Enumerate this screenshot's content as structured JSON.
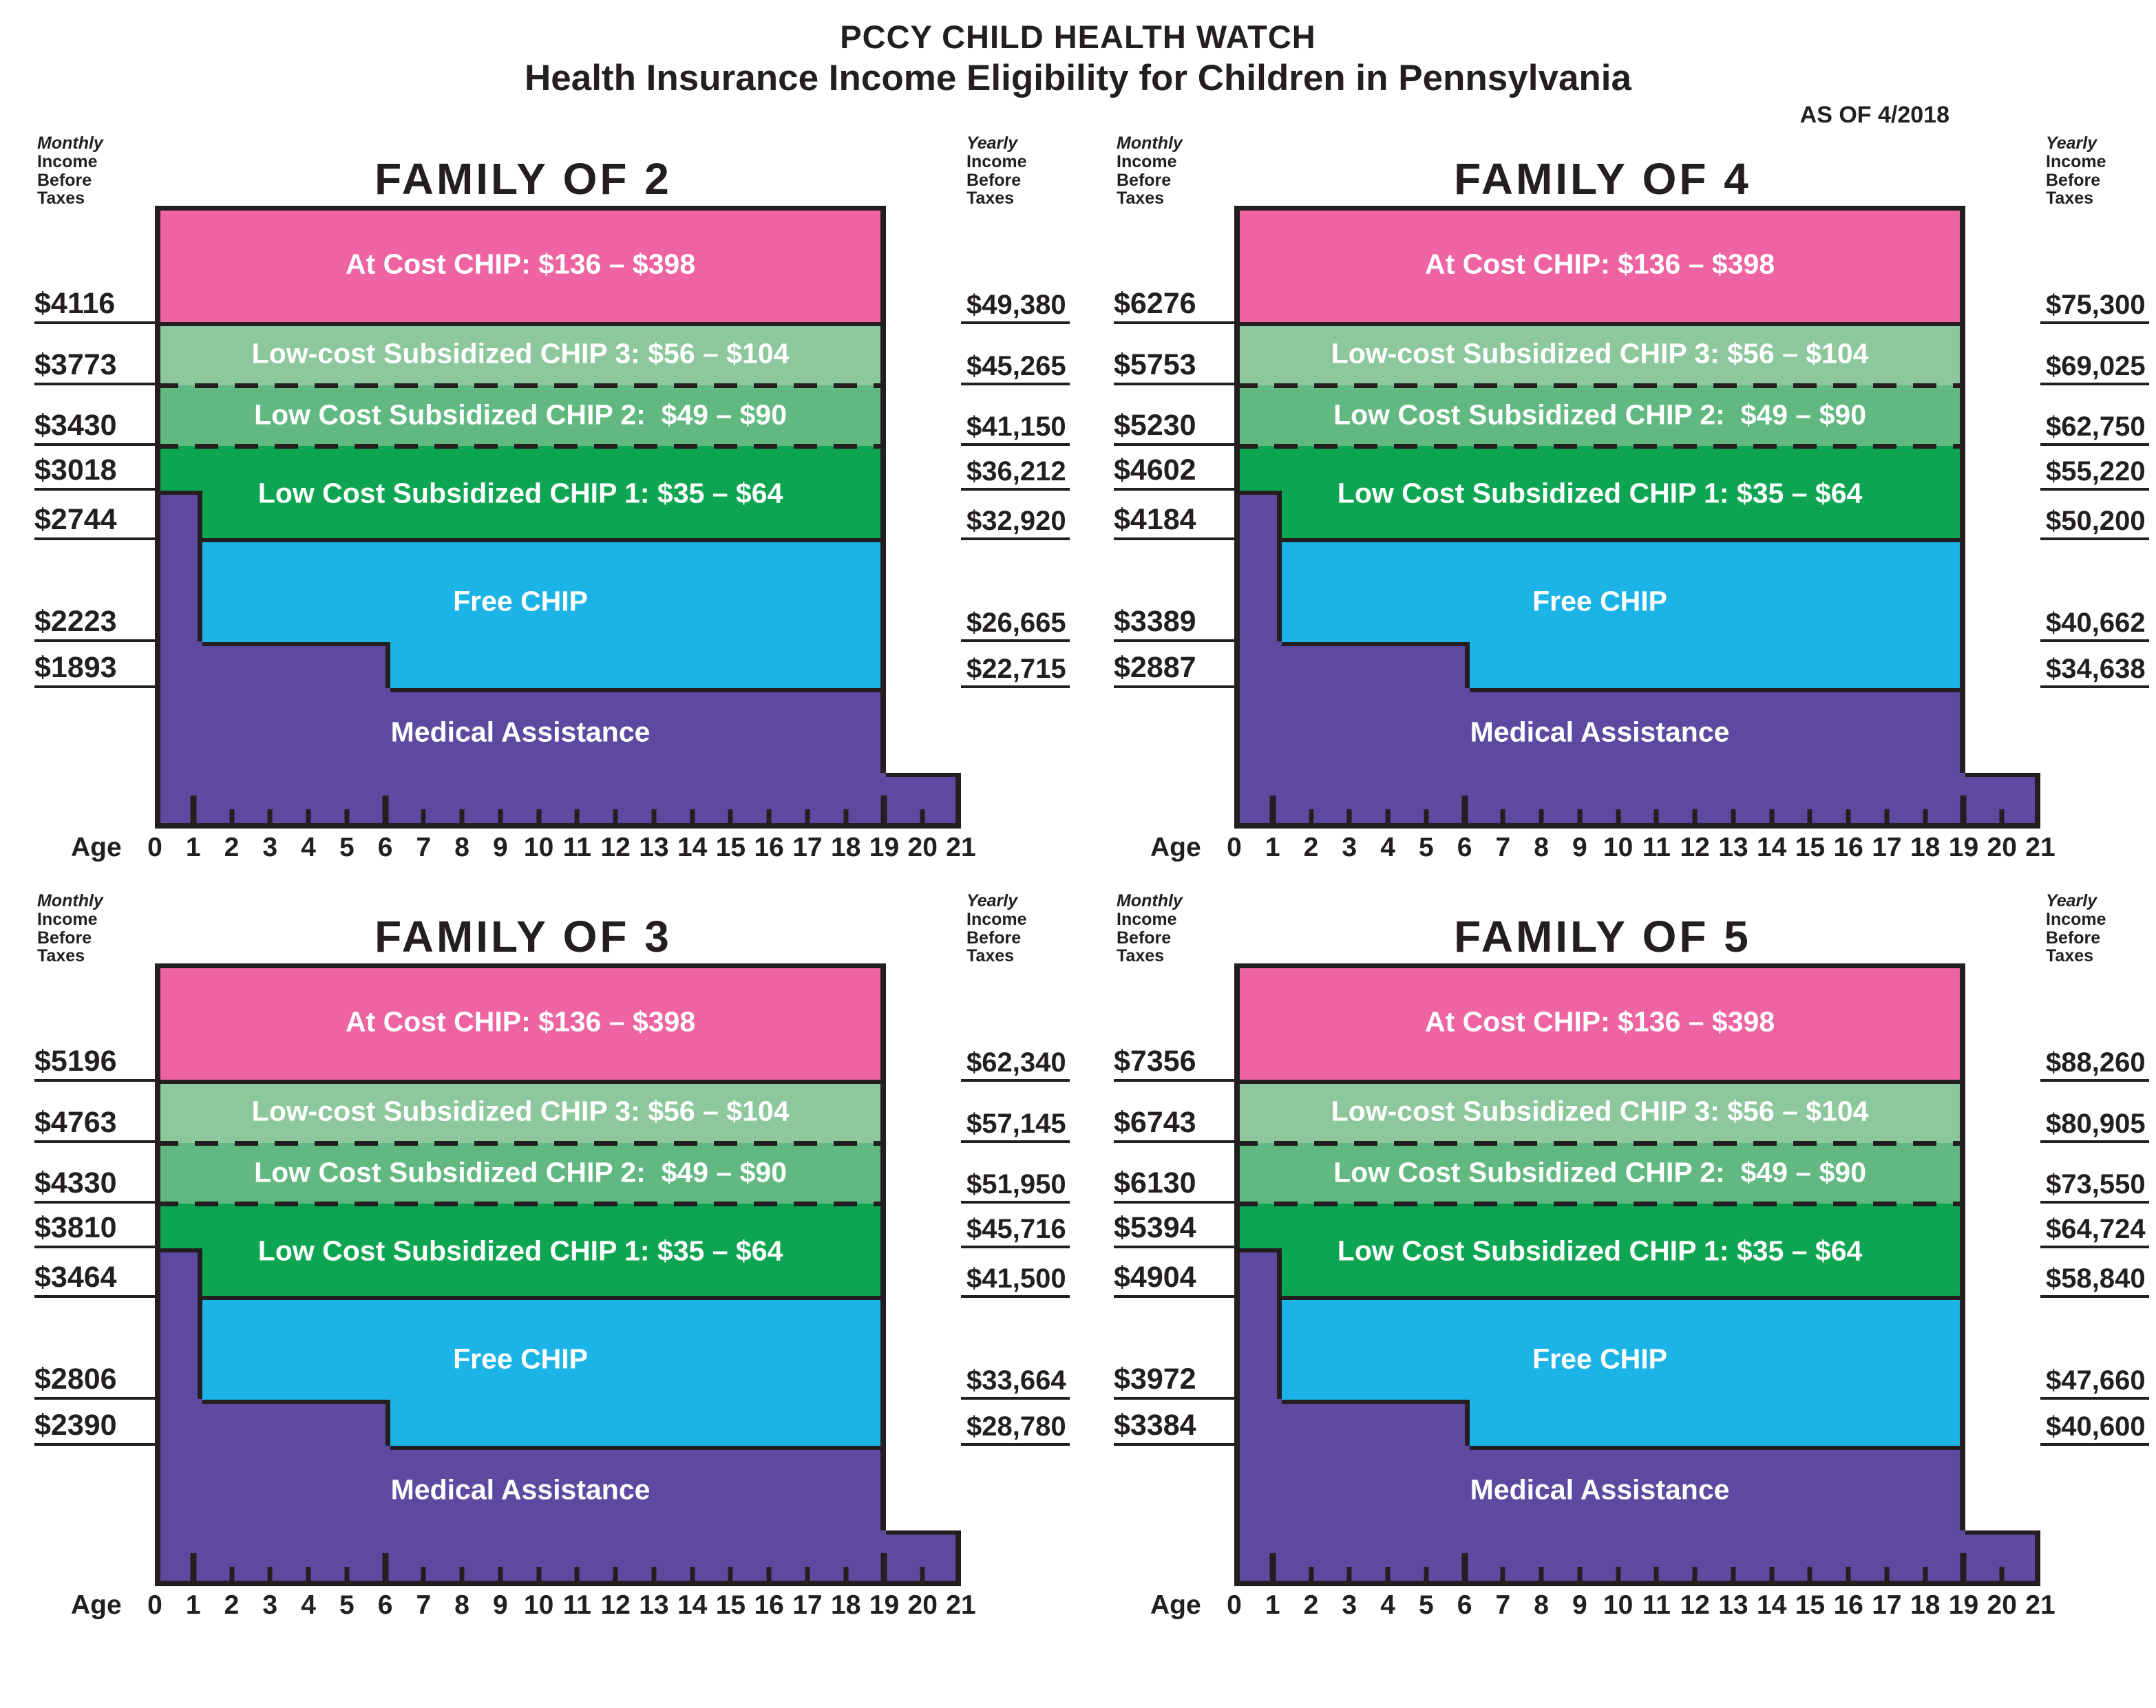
{
  "header": {
    "title": "PCCY CHILD HEALTH WATCH",
    "subtitle": "Health Insurance Income Eligibility for Children in Pennsylvania",
    "as_of": "AS OF 4/2018"
  },
  "axis": {
    "left_header": [
      "Monthly",
      "Income",
      "Before",
      "Taxes"
    ],
    "right_header": [
      "Yearly",
      "Income",
      "Before",
      "Taxes"
    ],
    "age_label": "Age",
    "ages": [
      "0",
      "1",
      "2",
      "3",
      "4",
      "5",
      "6",
      "7",
      "8",
      "9",
      "10",
      "11",
      "12",
      "13",
      "14",
      "15",
      "16",
      "17",
      "18",
      "19",
      "20",
      "21"
    ],
    "tall_tick_ages": [
      1,
      6,
      19
    ]
  },
  "bands": {
    "at_cost": "At Cost CHIP: $136 – $398",
    "chip3": "Low-cost Subsidized CHIP 3: $56 – $104",
    "chip2": "Low Cost Subsidized CHIP 2:  $49 – $90",
    "chip1": "Low Cost Subsidized CHIP 1: $35 – $64",
    "free_chip": "Free CHIP",
    "medical_assistance": "Medical Assistance"
  },
  "colors": {
    "pink": "#ee64a2",
    "g3": "#8dc89c",
    "g2": "#61b981",
    "g1": "#0da551",
    "cyan": "#1cb4e6",
    "purple": "#5b4aa0",
    "ink": "#231f20"
  },
  "panels": [
    {
      "title": "FAMILY OF 2",
      "monthly": [
        "$4116",
        "$3773",
        "$3430",
        "$3018",
        "$2744",
        "$2223",
        "$1893"
      ],
      "yearly": [
        "$49,380",
        "$45,265",
        "$41,150",
        "$36,212",
        "$32,920",
        "$26,665",
        "$22,715"
      ]
    },
    {
      "title": "FAMILY OF 4",
      "monthly": [
        "$6276",
        "$5753",
        "$5230",
        "$4602",
        "$4184",
        "$3389",
        "$2887"
      ],
      "yearly": [
        "$75,300",
        "$69,025",
        "$62,750",
        "$55,220",
        "$50,200",
        "$40,662",
        "$34,638"
      ]
    },
    {
      "title": "FAMILY OF 3",
      "monthly": [
        "$5196",
        "$4763",
        "$4330",
        "$3810",
        "$3464",
        "$2806",
        "$2390"
      ],
      "yearly": [
        "$62,340",
        "$57,145",
        "$51,950",
        "$45,716",
        "$41,500",
        "$33,664",
        "$28,780"
      ]
    },
    {
      "title": "FAMILY OF 5",
      "monthly": [
        "$7356",
        "$6743",
        "$6130",
        "$5394",
        "$4904",
        "$3972",
        "$3384"
      ],
      "yearly": [
        "$88,260",
        "$80,905",
        "$73,550",
        "$64,724",
        "$58,840",
        "$47,660",
        "$40,600"
      ]
    }
  ],
  "chart_data": {
    "type": "area",
    "title": "PCCY CHILD HEALTH WATCH — Health Insurance Income Eligibility for Children in Pennsylvania (AS OF 4/2018)",
    "xlabel": "Age",
    "x_range": [
      0,
      21
    ],
    "x_ticks": [
      0,
      1,
      2,
      3,
      4,
      5,
      6,
      7,
      8,
      9,
      10,
      11,
      12,
      13,
      14,
      15,
      16,
      17,
      18,
      19,
      20,
      21
    ],
    "ylabel_left": "Monthly Income Before Taxes",
    "ylabel_right": "Yearly Income Before Taxes",
    "band_order_top_to_bottom": [
      "At Cost CHIP: $136 – $398",
      "Low-cost Subsidized CHIP 3: $56 – $104",
      "Low Cost Subsidized CHIP 2: $49 – $90",
      "Low Cost Subsidized CHIP 1: $35 – $64",
      "Free CHIP",
      "Medical Assistance"
    ],
    "structure_notes": [
      "All eligibility bands span ages 0 through 19; Medical Assistance continues ages 19–21 at a reduced income level (unlabeled step at lower right)",
      "Medical Assistance upper limit steps down at age 1 and age 6",
      "For infants under age 1, Medical Assistance extends up to the 4th labeled value, replacing Free CHIP and the lower part of CHIP 1",
      "Dashed separators between CHIP 3/CHIP 2 and CHIP 2/CHIP 1; solid separators elsewhere"
    ],
    "panels": [
      {
        "family_size": 2,
        "monthly": {
          "at_cost_chip_bottom": 4116,
          "chip3_bottom": 3773,
          "chip2_bottom": 3430,
          "ma_top_under_age_1": 3018,
          "chip1_bottom": 2744,
          "ma_top_ages_1_5": 2223,
          "ma_top_ages_6_18": 1893
        },
        "yearly": {
          "at_cost_chip_bottom": 49380,
          "chip3_bottom": 45265,
          "chip2_bottom": 41150,
          "ma_top_under_age_1": 36212,
          "chip1_bottom": 32920,
          "ma_top_ages_1_5": 26665,
          "ma_top_ages_6_18": 22715
        }
      },
      {
        "family_size": 4,
        "monthly": {
          "at_cost_chip_bottom": 6276,
          "chip3_bottom": 5753,
          "chip2_bottom": 5230,
          "ma_top_under_age_1": 4602,
          "chip1_bottom": 4184,
          "ma_top_ages_1_5": 3389,
          "ma_top_ages_6_18": 2887
        },
        "yearly": {
          "at_cost_chip_bottom": 75300,
          "chip3_bottom": 69025,
          "chip2_bottom": 62750,
          "ma_top_under_age_1": 55220,
          "chip1_bottom": 50200,
          "ma_top_ages_1_5": 40662,
          "ma_top_ages_6_18": 34638
        }
      },
      {
        "family_size": 3,
        "monthly": {
          "at_cost_chip_bottom": 5196,
          "chip3_bottom": 4763,
          "chip2_bottom": 4330,
          "ma_top_under_age_1": 3810,
          "chip1_bottom": 3464,
          "ma_top_ages_1_5": 2806,
          "ma_top_ages_6_18": 2390
        },
        "yearly": {
          "at_cost_chip_bottom": 62340,
          "chip3_bottom": 57145,
          "chip2_bottom": 51950,
          "ma_top_under_age_1": 45716,
          "chip1_bottom": 41500,
          "ma_top_ages_1_5": 33664,
          "ma_top_ages_6_18": 28780
        }
      },
      {
        "family_size": 5,
        "monthly": {
          "at_cost_chip_bottom": 7356,
          "chip3_bottom": 6743,
          "chip2_bottom": 6130,
          "ma_top_under_age_1": 5394,
          "chip1_bottom": 4904,
          "ma_top_ages_1_5": 3972,
          "ma_top_ages_6_18": 3384
        },
        "yearly": {
          "at_cost_chip_bottom": 88260,
          "chip3_bottom": 80905,
          "chip2_bottom": 73550,
          "ma_top_under_age_1": 64724,
          "chip1_bottom": 58840,
          "ma_top_ages_1_5": 47660,
          "ma_top_ages_6_18": 40600
        }
      }
    ]
  }
}
